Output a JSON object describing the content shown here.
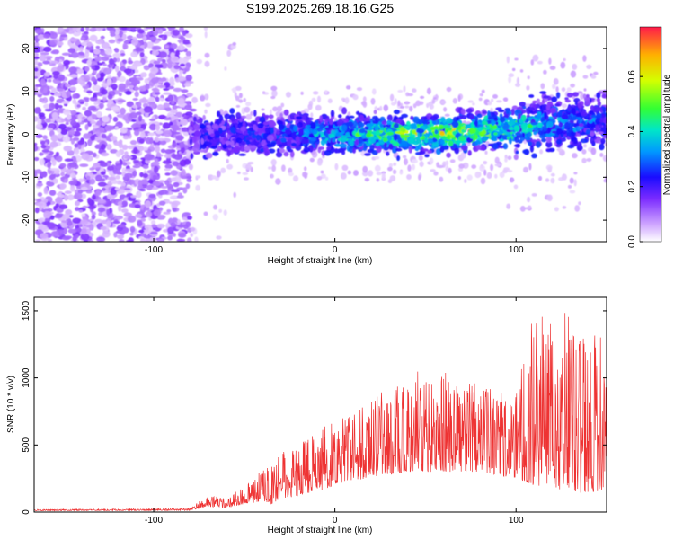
{
  "title": "S199.2025.269.18.16.G25",
  "chart_data": [
    {
      "type": "heatmap",
      "title": "S199.2025.269.18.16.G25",
      "xlabel": "Height of straight line (km)",
      "ylabel": "Frequency (Hz)",
      "xlim": [
        -166,
        150
      ],
      "ylim": [
        -25,
        25
      ],
      "x_ticks": [
        -100,
        0,
        100
      ],
      "y_ticks": [
        -20,
        -10,
        0,
        10,
        20
      ],
      "x_tick_labels": [
        "-100",
        "0",
        "100"
      ],
      "y_tick_labels": [
        "-20",
        "-10",
        "0",
        "10",
        "20"
      ],
      "colorbar": {
        "label": "Normalized spectral amplitude",
        "range": [
          0.0,
          0.78
        ],
        "ticks": [
          0.0,
          0.2,
          0.4,
          0.6
        ],
        "tick_labels": [
          "0.0",
          "0.2",
          "0.4",
          "0.6"
        ]
      },
      "regions": [
        {
          "name": "noise",
          "x": [
            -166,
            -80
          ],
          "freq_half_width": 25,
          "amplitude": 0.05
        },
        {
          "name": "signal-band",
          "x": [
            -80,
            150
          ],
          "freq_center": 0,
          "freq_half_width": 6,
          "amplitude_peak": 0.55,
          "peak_at_x": 60
        }
      ]
    },
    {
      "type": "line",
      "xlabel": "Height of straight line (km)",
      "ylabel": "SNR (10 * v/v)",
      "xlim": [
        -166,
        150
      ],
      "ylim": [
        0,
        1600
      ],
      "x_ticks": [
        -100,
        0,
        100
      ],
      "y_ticks": [
        0,
        500,
        1000,
        1500
      ],
      "x_tick_labels": [
        "-100",
        "0",
        "100"
      ],
      "y_tick_labels": [
        "0",
        "500",
        "1000",
        "1500"
      ],
      "series": [
        {
          "name": "SNR",
          "color": "#ee3333",
          "envelope_x": [
            -166,
            -100,
            -80,
            -70,
            -60,
            -50,
            -40,
            -35,
            -30,
            -20,
            -10,
            0,
            20,
            40,
            60,
            80,
            100,
            110,
            120,
            130,
            140,
            150
          ],
          "envelope_y": [
            20,
            25,
            30,
            130,
            100,
            200,
            320,
            380,
            440,
            500,
            600,
            700,
            850,
            1050,
            1050,
            950,
            900,
            1500,
            1400,
            1550,
            1300,
            1400
          ],
          "baseline_y": [
            10,
            12,
            12,
            40,
            30,
            60,
            80,
            60,
            100,
            120,
            150,
            200,
            260,
            300,
            300,
            300,
            250,
            200,
            180,
            150,
            150,
            160
          ]
        }
      ]
    }
  ]
}
